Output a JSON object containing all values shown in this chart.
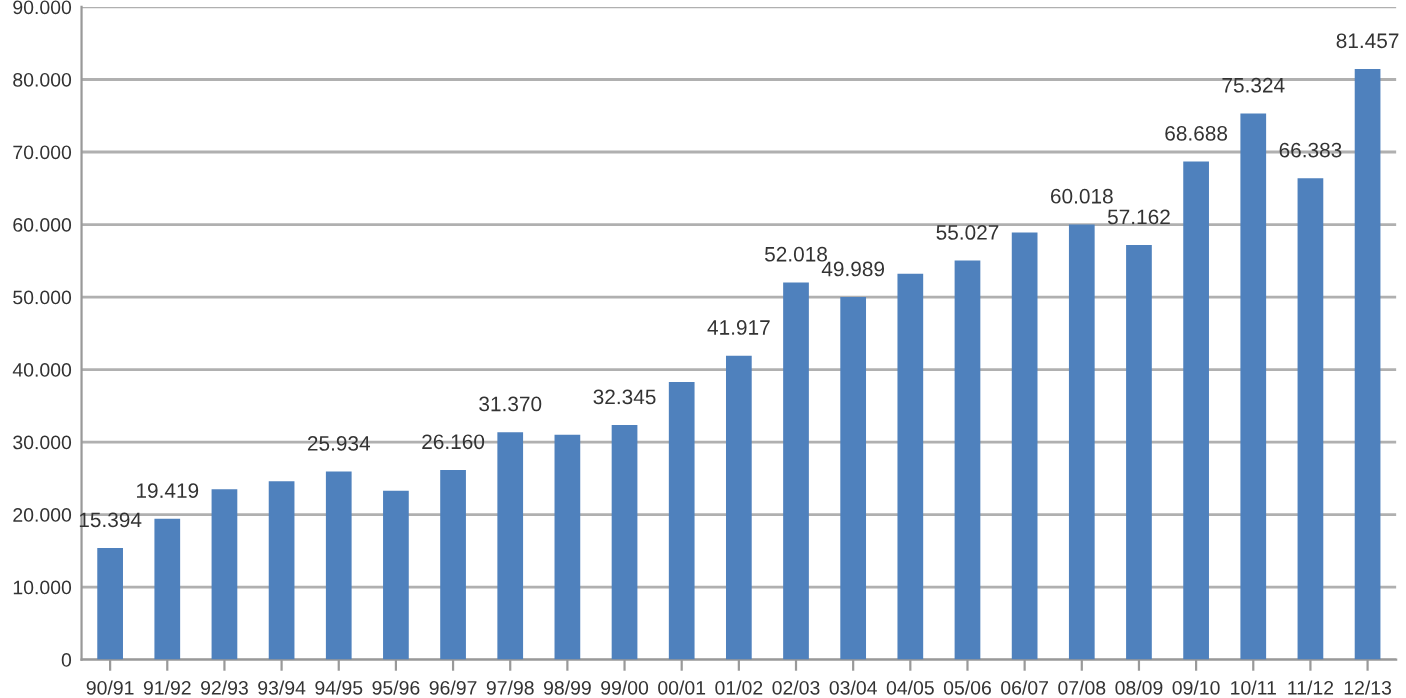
{
  "chart_data": {
    "type": "bar",
    "categories": [
      "90/91",
      "91/92",
      "92/93",
      "93/94",
      "94/95",
      "95/96",
      "96/97",
      "97/98",
      "98/99",
      "99/00",
      "00/01",
      "01/02",
      "02/03",
      "03/04",
      "04/05",
      "05/06",
      "06/07",
      "07/08",
      "08/09",
      "09/10",
      "10/11",
      "11/12",
      "12/13"
    ],
    "values": [
      15394,
      19419,
      23500,
      24600,
      25934,
      23300,
      26160,
      31370,
      31000,
      32345,
      38300,
      41917,
      52018,
      49989,
      53200,
      55027,
      58900,
      60018,
      57162,
      68688,
      75324,
      66383,
      81457
    ],
    "value_labels": [
      "15.394",
      "19.419",
      null,
      null,
      "25.934",
      null,
      "26.160",
      "31.370",
      null,
      "32.345",
      null,
      "41.917",
      "52.018",
      "49.989",
      null,
      "55.027",
      null,
      "60.018",
      "57.162",
      "68.688",
      "75.324",
      "66.383",
      "81.457"
    ],
    "color": "#4f81bd",
    "ylim": [
      0,
      90000
    ],
    "yticks": [
      {
        "value": 0,
        "label": "0"
      },
      {
        "value": 10000,
        "label": "10.000"
      },
      {
        "value": 20000,
        "label": "20.000"
      },
      {
        "value": 30000,
        "label": "30.000"
      },
      {
        "value": 40000,
        "label": "40.000"
      },
      {
        "value": 50000,
        "label": "50.000"
      },
      {
        "value": 60000,
        "label": "60.000"
      },
      {
        "value": 70000,
        "label": "70.000"
      },
      {
        "value": 80000,
        "label": "80.000"
      },
      {
        "value": 90000,
        "label": "90.000"
      }
    ],
    "grid": "y"
  }
}
